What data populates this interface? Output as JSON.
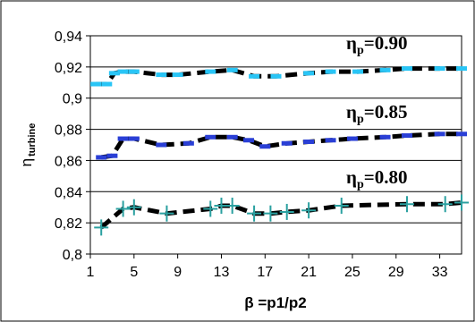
{
  "chart_data": {
    "type": "line",
    "xlabel": "β =p1/p2",
    "ylabel": "η",
    "ylabel_subscript": "turbine",
    "xticks": [
      "1",
      "5",
      "9",
      "13",
      "17",
      "21",
      "25",
      "29",
      "33"
    ],
    "yticks": [
      "0,8",
      "0,82",
      "0,84",
      "0,86",
      "0,88",
      "0,9",
      "0,92",
      "0,94"
    ],
    "xlim": [
      1,
      35
    ],
    "ylim": [
      0.8,
      0.94
    ],
    "grid": "horizontal",
    "legend": "none",
    "series": [
      {
        "annotation": "ηp=0.90",
        "color_markers": "#29c5f6",
        "color_line": "#000000",
        "marker": "dash",
        "x": [
          1.5,
          2.5,
          3.2,
          4.0,
          5.0,
          7.5,
          9.0,
          12.0,
          14.0,
          16.0,
          18.0,
          21.0,
          23.0,
          25.5,
          28.0,
          30.0,
          33.0,
          35.0
        ],
        "y": [
          0.909,
          0.909,
          0.916,
          0.917,
          0.917,
          0.915,
          0.915,
          0.917,
          0.918,
          0.914,
          0.914,
          0.916,
          0.917,
          0.917,
          0.918,
          0.919,
          0.919,
          0.919
        ]
      },
      {
        "annotation": "ηp=0.85",
        "color_markers": "#2a3fd6",
        "color_line": "#000000",
        "marker": "dash",
        "x": [
          2.0,
          3.0,
          4.0,
          5.0,
          7.5,
          10.0,
          12.0,
          14.0,
          15.5,
          17.0,
          19.0,
          21.0,
          23.0,
          25.0,
          28.0,
          30.0,
          33.0,
          35.0
        ],
        "y": [
          0.862,
          0.863,
          0.874,
          0.874,
          0.87,
          0.871,
          0.875,
          0.875,
          0.873,
          0.869,
          0.871,
          0.872,
          0.873,
          0.874,
          0.875,
          0.876,
          0.877,
          0.877
        ]
      },
      {
        "annotation": "ηp=0.80",
        "color_markers": "#2aa0a0",
        "color_line": "#000000",
        "marker": "plus",
        "x": [
          2.0,
          4.0,
          5.0,
          8.0,
          12.0,
          13.0,
          14.0,
          16.0,
          17.5,
          19.0,
          21.0,
          24.0,
          30.0,
          33.5,
          35.0
        ],
        "y": [
          0.817,
          0.829,
          0.83,
          0.826,
          0.829,
          0.831,
          0.831,
          0.826,
          0.826,
          0.827,
          0.828,
          0.831,
          0.832,
          0.832,
          0.833
        ]
      }
    ]
  }
}
